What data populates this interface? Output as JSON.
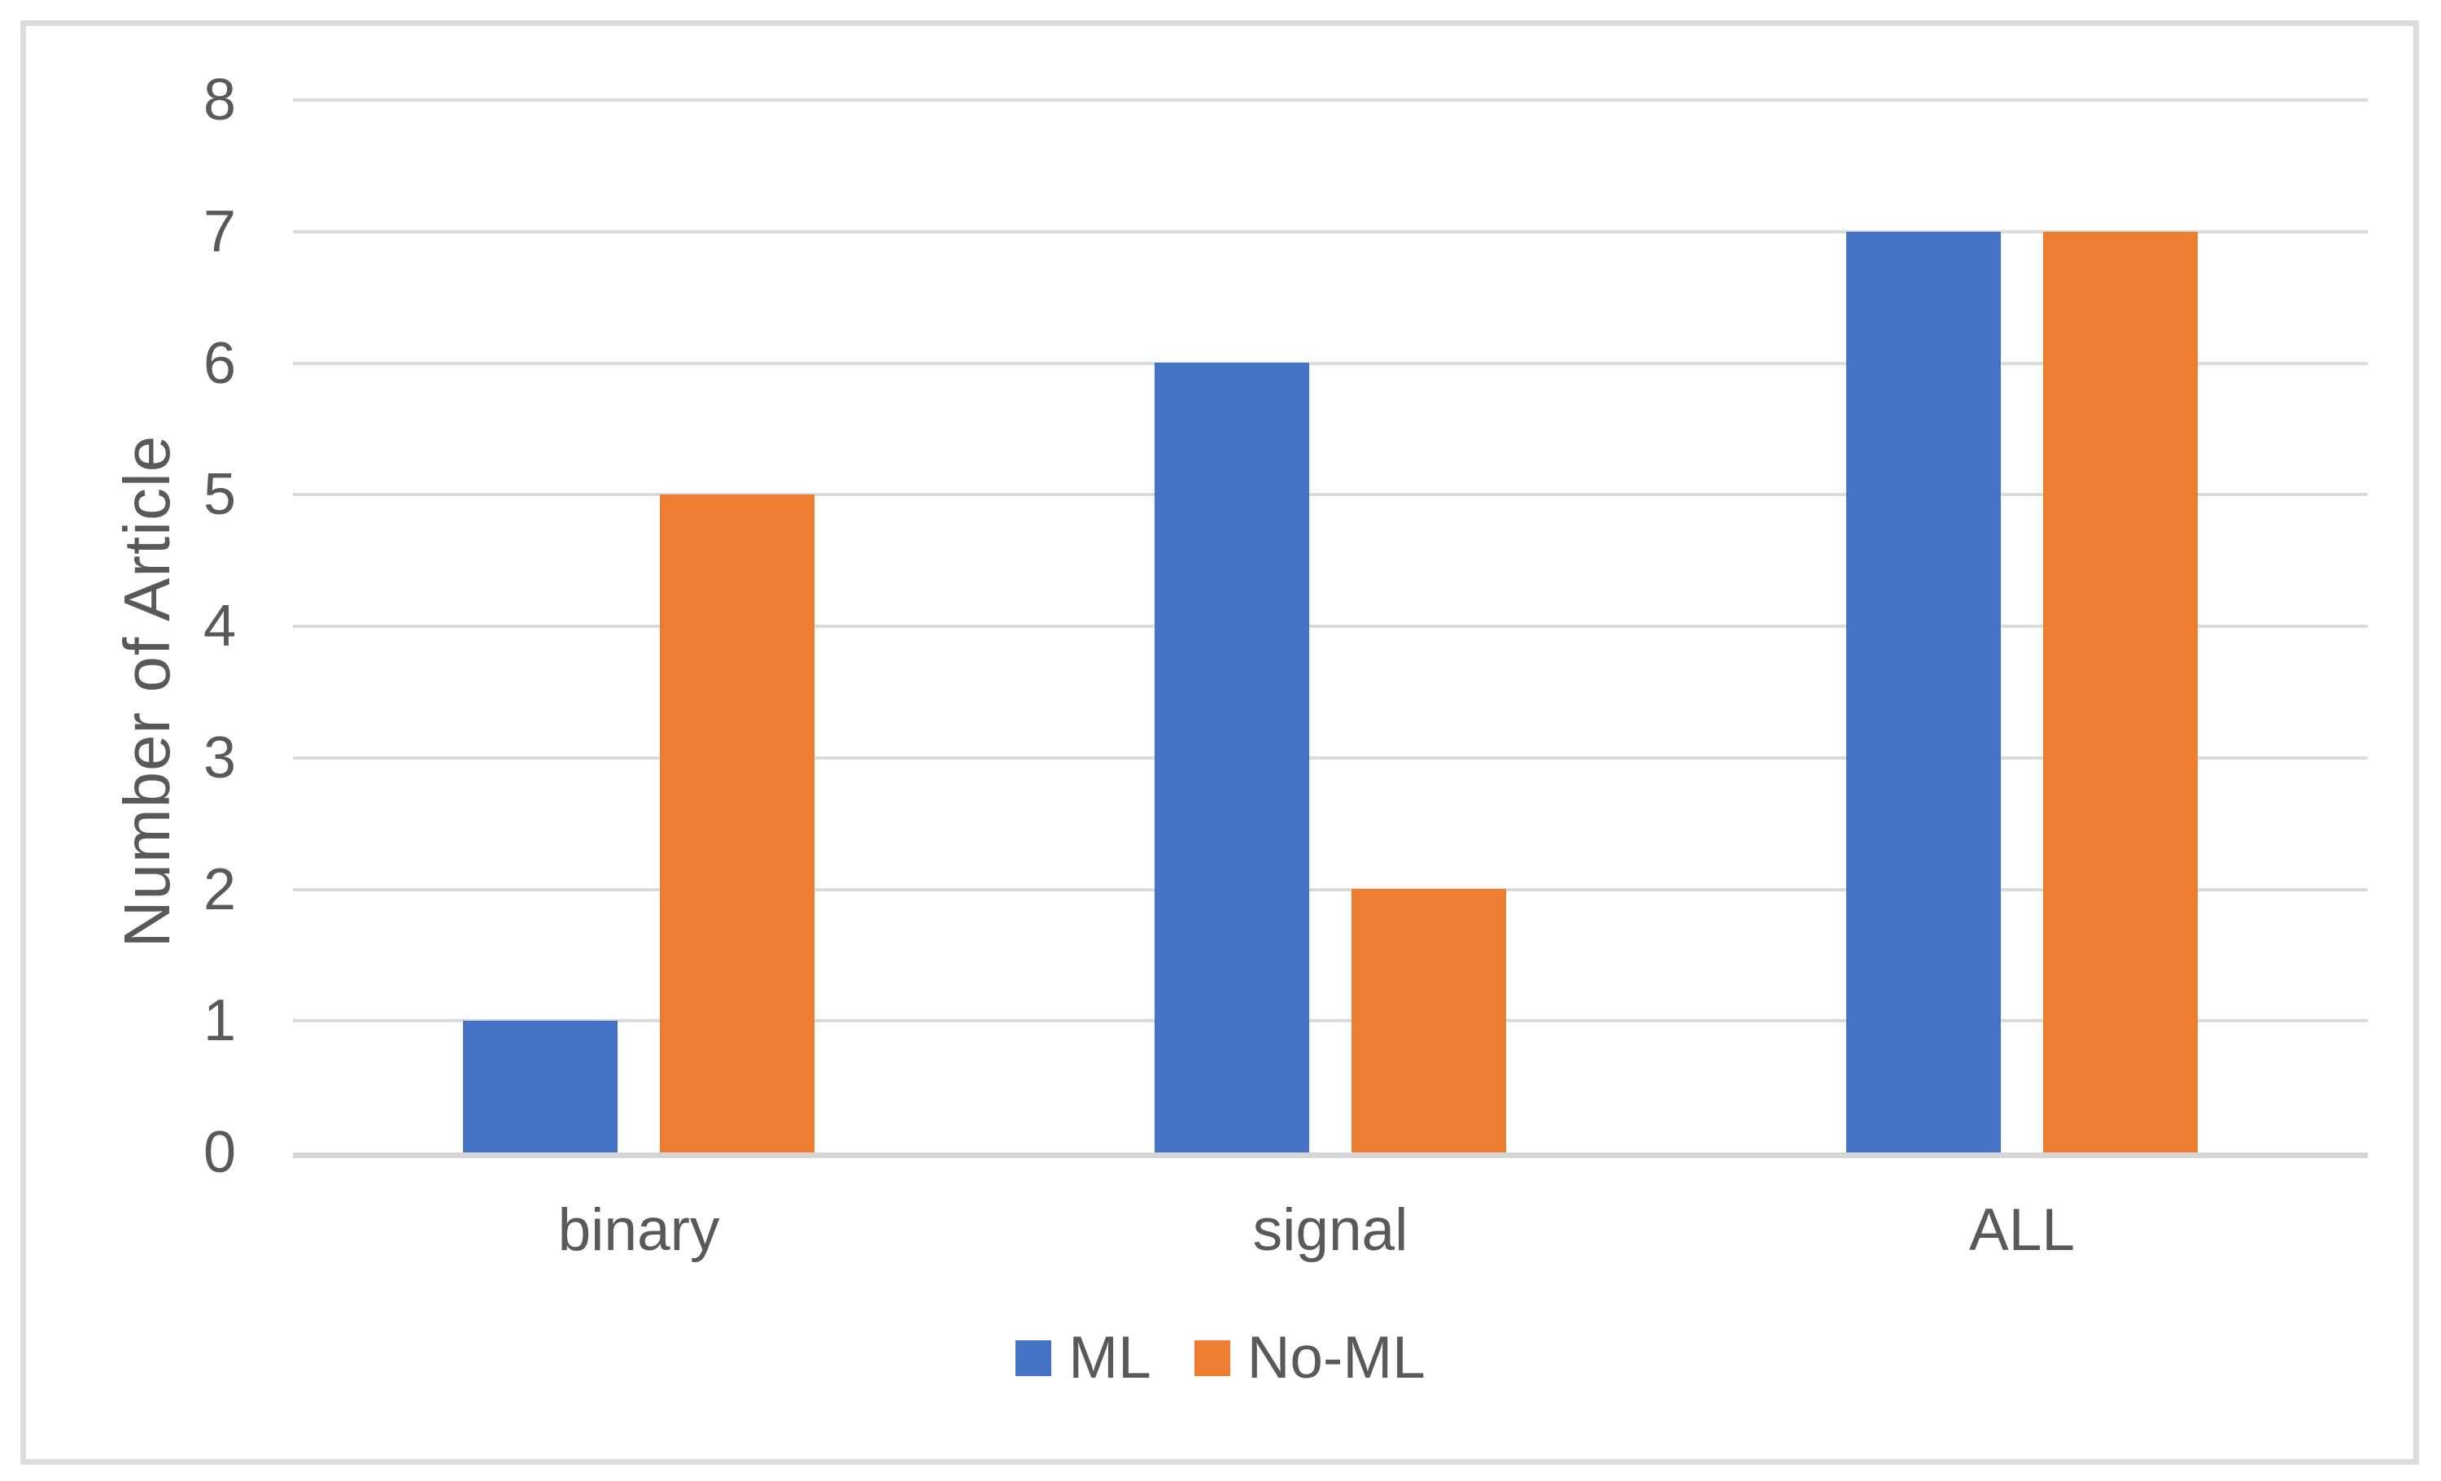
{
  "chart_data": {
    "type": "bar",
    "title": "",
    "xlabel": "",
    "ylabel": "Number of Article",
    "categories": [
      "binary",
      "signal",
      "ALL"
    ],
    "series": [
      {
        "name": "ML",
        "color": "#4472C4",
        "values": [
          1,
          6,
          7
        ]
      },
      {
        "name": "No-ML",
        "color": "#ED7D31",
        "values": [
          5,
          2,
          7
        ]
      }
    ],
    "ylim": [
      0,
      8
    ],
    "ytick_step": 1,
    "yticks": [
      0,
      1,
      2,
      3,
      4,
      5,
      6,
      7,
      8
    ],
    "grid": true,
    "legend_position": "bottom"
  },
  "colors": {
    "text": "#595959",
    "gridline": "#dbdbdb",
    "axis_line": "#d6d6d6",
    "frame_border": "#dcdcdc",
    "background": "#ffffff"
  }
}
